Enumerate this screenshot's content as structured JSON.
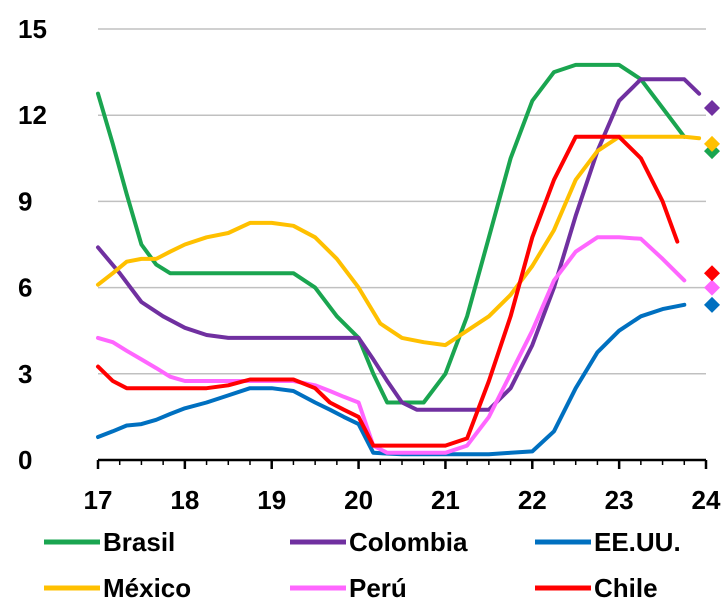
{
  "chart_data": {
    "type": "line",
    "title": "",
    "xlabel": "",
    "ylabel": "",
    "xlim": [
      17,
      24
    ],
    "ylim": [
      0,
      15
    ],
    "x_ticks": [
      17,
      18,
      19,
      20,
      21,
      22,
      23,
      24
    ],
    "y_ticks": [
      0,
      3,
      6,
      9,
      12,
      15
    ],
    "x_tick_labels": [
      "17",
      "18",
      "19",
      "20",
      "21",
      "22",
      "23",
      "24"
    ],
    "y_tick_labels": [
      "0",
      "3",
      "6",
      "9",
      "12",
      "15"
    ],
    "grid": "horizontal",
    "legend_position": "bottom",
    "series": [
      {
        "name": "Brasil",
        "color": "#1aa550",
        "points": [
          [
            17.0,
            12.75
          ],
          [
            17.17,
            11.0
          ],
          [
            17.33,
            9.25
          ],
          [
            17.5,
            7.5
          ],
          [
            17.67,
            6.8
          ],
          [
            17.83,
            6.5
          ],
          [
            18.0,
            6.5
          ],
          [
            18.25,
            6.5
          ],
          [
            18.5,
            6.5
          ],
          [
            18.75,
            6.5
          ],
          [
            19.0,
            6.5
          ],
          [
            19.25,
            6.5
          ],
          [
            19.5,
            6.0
          ],
          [
            19.75,
            5.0
          ],
          [
            20.0,
            4.25
          ],
          [
            20.17,
            3.0
          ],
          [
            20.33,
            2.0
          ],
          [
            20.58,
            2.0
          ],
          [
            20.75,
            2.0
          ],
          [
            21.0,
            3.0
          ],
          [
            21.25,
            5.0
          ],
          [
            21.5,
            7.75
          ],
          [
            21.75,
            10.5
          ],
          [
            22.0,
            12.5
          ],
          [
            22.25,
            13.5
          ],
          [
            22.5,
            13.75
          ],
          [
            22.75,
            13.75
          ],
          [
            23.0,
            13.75
          ],
          [
            23.25,
            13.25
          ],
          [
            23.5,
            12.25
          ],
          [
            23.75,
            11.25
          ]
        ],
        "endpoint": [
          24.0,
          10.75
        ]
      },
      {
        "name": "Colombia",
        "color": "#7030a0",
        "points": [
          [
            17.0,
            7.4
          ],
          [
            17.25,
            6.5
          ],
          [
            17.5,
            5.5
          ],
          [
            17.75,
            5.0
          ],
          [
            18.0,
            4.6
          ],
          [
            18.25,
            4.35
          ],
          [
            18.5,
            4.25
          ],
          [
            18.75,
            4.25
          ],
          [
            19.0,
            4.25
          ],
          [
            19.25,
            4.25
          ],
          [
            19.5,
            4.25
          ],
          [
            19.75,
            4.25
          ],
          [
            20.0,
            4.25
          ],
          [
            20.17,
            3.5
          ],
          [
            20.33,
            2.75
          ],
          [
            20.5,
            2.0
          ],
          [
            20.67,
            1.75
          ],
          [
            20.83,
            1.75
          ],
          [
            21.0,
            1.75
          ],
          [
            21.25,
            1.75
          ],
          [
            21.5,
            1.75
          ],
          [
            21.75,
            2.5
          ],
          [
            22.0,
            4.0
          ],
          [
            22.25,
            6.0
          ],
          [
            22.5,
            8.5
          ],
          [
            22.75,
            10.75
          ],
          [
            23.0,
            12.5
          ],
          [
            23.25,
            13.25
          ],
          [
            23.5,
            13.25
          ],
          [
            23.75,
            13.25
          ],
          [
            23.92,
            12.75
          ]
        ],
        "endpoint": [
          24.0,
          12.25
        ]
      },
      {
        "name": "EE.UU.",
        "color": "#0070c0",
        "points": [
          [
            17.0,
            0.8
          ],
          [
            17.17,
            1.0
          ],
          [
            17.33,
            1.2
          ],
          [
            17.5,
            1.25
          ],
          [
            17.67,
            1.4
          ],
          [
            17.83,
            1.6
          ],
          [
            18.0,
            1.8
          ],
          [
            18.25,
            2.0
          ],
          [
            18.5,
            2.25
          ],
          [
            18.75,
            2.5
          ],
          [
            19.0,
            2.5
          ],
          [
            19.25,
            2.4
          ],
          [
            19.5,
            2.0
          ],
          [
            19.67,
            1.75
          ],
          [
            19.83,
            1.5
          ],
          [
            20.0,
            1.25
          ],
          [
            20.17,
            0.25
          ],
          [
            20.5,
            0.2
          ],
          [
            21.0,
            0.2
          ],
          [
            21.5,
            0.2
          ],
          [
            21.75,
            0.25
          ],
          [
            22.0,
            0.3
          ],
          [
            22.25,
            1.0
          ],
          [
            22.5,
            2.5
          ],
          [
            22.75,
            3.75
          ],
          [
            23.0,
            4.5
          ],
          [
            23.25,
            5.0
          ],
          [
            23.5,
            5.25
          ],
          [
            23.75,
            5.4
          ]
        ],
        "endpoint": [
          24.0,
          5.4
        ]
      },
      {
        "name": "México",
        "color": "#ffc000",
        "points": [
          [
            17.0,
            6.1
          ],
          [
            17.17,
            6.5
          ],
          [
            17.33,
            6.9
          ],
          [
            17.5,
            7.0
          ],
          [
            17.67,
            7.0
          ],
          [
            17.83,
            7.25
          ],
          [
            18.0,
            7.5
          ],
          [
            18.25,
            7.75
          ],
          [
            18.5,
            7.9
          ],
          [
            18.75,
            8.25
          ],
          [
            19.0,
            8.25
          ],
          [
            19.25,
            8.15
          ],
          [
            19.5,
            7.75
          ],
          [
            19.75,
            7.0
          ],
          [
            20.0,
            6.0
          ],
          [
            20.25,
            4.75
          ],
          [
            20.5,
            4.25
          ],
          [
            20.75,
            4.1
          ],
          [
            21.0,
            4.0
          ],
          [
            21.25,
            4.5
          ],
          [
            21.5,
            5.0
          ],
          [
            21.75,
            5.75
          ],
          [
            22.0,
            6.75
          ],
          [
            22.25,
            8.0
          ],
          [
            22.5,
            9.75
          ],
          [
            22.75,
            10.75
          ],
          [
            23.0,
            11.25
          ],
          [
            23.25,
            11.25
          ],
          [
            23.5,
            11.25
          ],
          [
            23.75,
            11.25
          ],
          [
            23.92,
            11.2
          ]
        ],
        "endpoint": [
          24.0,
          11.0
        ]
      },
      {
        "name": "Perú",
        "color": "#ff66ff",
        "points": [
          [
            17.0,
            4.25
          ],
          [
            17.17,
            4.1
          ],
          [
            17.33,
            3.8
          ],
          [
            17.5,
            3.5
          ],
          [
            17.67,
            3.2
          ],
          [
            17.83,
            2.9
          ],
          [
            18.0,
            2.75
          ],
          [
            18.25,
            2.75
          ],
          [
            18.5,
            2.75
          ],
          [
            18.75,
            2.75
          ],
          [
            19.0,
            2.75
          ],
          [
            19.25,
            2.75
          ],
          [
            19.5,
            2.6
          ],
          [
            19.67,
            2.4
          ],
          [
            19.83,
            2.2
          ],
          [
            20.0,
            2.0
          ],
          [
            20.17,
            0.5
          ],
          [
            20.33,
            0.25
          ],
          [
            20.67,
            0.25
          ],
          [
            21.0,
            0.25
          ],
          [
            21.25,
            0.5
          ],
          [
            21.5,
            1.5
          ],
          [
            21.75,
            3.0
          ],
          [
            22.0,
            4.5
          ],
          [
            22.25,
            6.25
          ],
          [
            22.5,
            7.25
          ],
          [
            22.75,
            7.75
          ],
          [
            23.0,
            7.75
          ],
          [
            23.25,
            7.7
          ],
          [
            23.5,
            7.0
          ],
          [
            23.75,
            6.25
          ]
        ],
        "endpoint": [
          24.0,
          6.0
        ]
      },
      {
        "name": "Chile",
        "color": "#ff0000",
        "points": [
          [
            17.0,
            3.25
          ],
          [
            17.17,
            2.75
          ],
          [
            17.33,
            2.5
          ],
          [
            17.5,
            2.5
          ],
          [
            17.75,
            2.5
          ],
          [
            18.0,
            2.5
          ],
          [
            18.25,
            2.5
          ],
          [
            18.5,
            2.6
          ],
          [
            18.75,
            2.8
          ],
          [
            19.0,
            2.8
          ],
          [
            19.25,
            2.8
          ],
          [
            19.5,
            2.5
          ],
          [
            19.67,
            2.0
          ],
          [
            19.83,
            1.75
          ],
          [
            20.0,
            1.5
          ],
          [
            20.17,
            0.5
          ],
          [
            20.5,
            0.5
          ],
          [
            20.75,
            0.5
          ],
          [
            21.0,
            0.5
          ],
          [
            21.25,
            0.75
          ],
          [
            21.5,
            2.75
          ],
          [
            21.75,
            5.0
          ],
          [
            22.0,
            7.75
          ],
          [
            22.25,
            9.75
          ],
          [
            22.5,
            11.25
          ],
          [
            22.75,
            11.25
          ],
          [
            23.0,
            11.25
          ],
          [
            23.25,
            10.5
          ],
          [
            23.5,
            9.0
          ],
          [
            23.67,
            7.6
          ]
        ],
        "endpoint": [
          24.0,
          6.5
        ]
      }
    ]
  }
}
